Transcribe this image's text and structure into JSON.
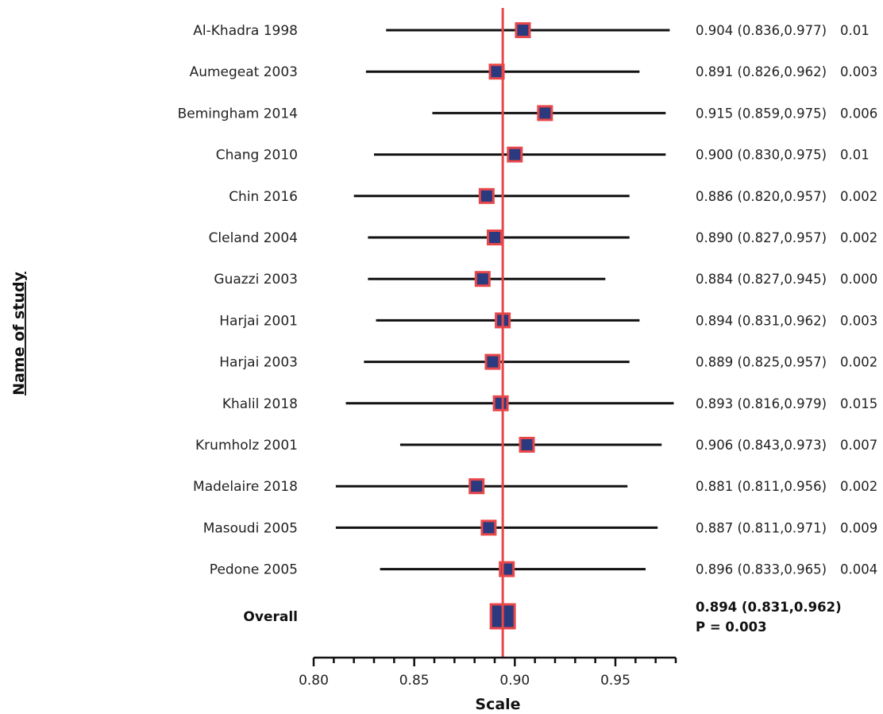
{
  "chart_data": {
    "type": "forest",
    "ylabel": "Name of study",
    "xlabel": "Scale",
    "xlim": [
      0.8,
      0.98
    ],
    "xticks": [
      0.8,
      0.85,
      0.9,
      0.95
    ],
    "xtick_labels": [
      "0.80",
      "0.85",
      "0.90",
      "0.95"
    ],
    "reference_line": 0.894,
    "colors": {
      "line": "#e8474a",
      "marker": "#2b3a7e",
      "marker_edge": "#e8474a",
      "whisker": "#111111"
    },
    "studies": [
      {
        "name": "Al-Khadra 1998",
        "estimate": 0.904,
        "lower": 0.836,
        "upper": 0.977,
        "ci_text": "0.904 (0.836,0.977)",
        "weight": "0.01"
      },
      {
        "name": "Aumegeat 2003",
        "estimate": 0.891,
        "lower": 0.826,
        "upper": 0.962,
        "ci_text": "0.891 (0.826,0.962)",
        "weight": "0.003"
      },
      {
        "name": "Bemingham 2014",
        "estimate": 0.915,
        "lower": 0.859,
        "upper": 0.975,
        "ci_text": "0.915 (0.859,0.975)",
        "weight": "0.006"
      },
      {
        "name": "Chang 2010",
        "estimate": 0.9,
        "lower": 0.83,
        "upper": 0.975,
        "ci_text": "0.900 (0.830,0.975)",
        "weight": "0.01"
      },
      {
        "name": "Chin 2016",
        "estimate": 0.886,
        "lower": 0.82,
        "upper": 0.957,
        "ci_text": "0.886 (0.820,0.957)",
        "weight": "0.002"
      },
      {
        "name": "Cleland 2004",
        "estimate": 0.89,
        "lower": 0.827,
        "upper": 0.957,
        "ci_text": "0.890 (0.827,0.957)",
        "weight": "0.002"
      },
      {
        "name": "Guazzi 2003",
        "estimate": 0.884,
        "lower": 0.827,
        "upper": 0.945,
        "ci_text": "0.884 (0.827,0.945)",
        "weight": "0.000"
      },
      {
        "name": "Harjai 2001",
        "estimate": 0.894,
        "lower": 0.831,
        "upper": 0.962,
        "ci_text": "0.894 (0.831,0.962)",
        "weight": "0.003"
      },
      {
        "name": "Harjai 2003",
        "estimate": 0.889,
        "lower": 0.825,
        "upper": 0.957,
        "ci_text": "0.889 (0.825,0.957)",
        "weight": "0.002"
      },
      {
        "name": "Khalil 2018",
        "estimate": 0.893,
        "lower": 0.816,
        "upper": 0.979,
        "ci_text": "0.893 (0.816,0.979)",
        "weight": "0.015"
      },
      {
        "name": "Krumholz 2001",
        "estimate": 0.906,
        "lower": 0.843,
        "upper": 0.973,
        "ci_text": "0.906 (0.843,0.973)",
        "weight": "0.007"
      },
      {
        "name": "Madelaire 2018",
        "estimate": 0.881,
        "lower": 0.811,
        "upper": 0.956,
        "ci_text": "0.881 (0.811,0.956)",
        "weight": "0.002"
      },
      {
        "name": "Masoudi 2005",
        "estimate": 0.887,
        "lower": 0.811,
        "upper": 0.971,
        "ci_text": "0.887 (0.811,0.971)",
        "weight": "0.009"
      },
      {
        "name": "Pedone 2005",
        "estimate": 0.896,
        "lower": 0.833,
        "upper": 0.965,
        "ci_text": "0.896 (0.833,0.965)",
        "weight": "0.004"
      }
    ],
    "overall": {
      "name": "Overall",
      "estimate": 0.894,
      "ci_text": "0.894 (0.831,0.962)",
      "p_text": "P = 0.003"
    }
  }
}
